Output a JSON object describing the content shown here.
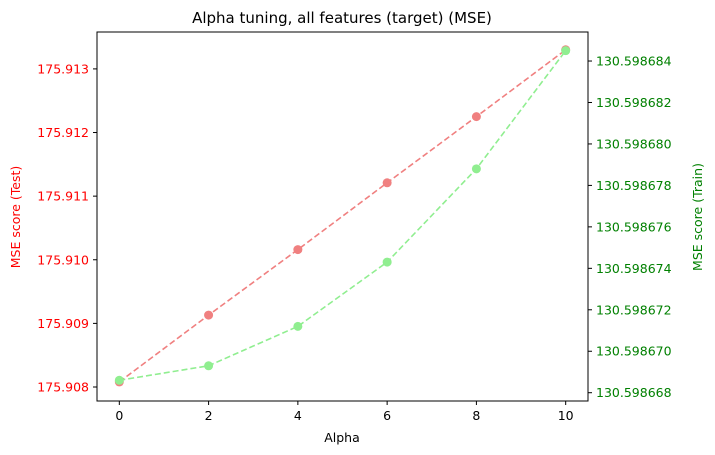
{
  "chart_data": {
    "type": "line",
    "title": "Alpha tuning, all features (target) (MSE)",
    "xlabel": "Alpha",
    "ylabel_left": "MSE score (Test)",
    "ylabel_right": "MSE score (Train)",
    "x": [
      0,
      2,
      4,
      6,
      8,
      10
    ],
    "xlim": [
      -0.5,
      10.5
    ],
    "xticks": [
      "0",
      "2",
      "4",
      "6",
      "8",
      "10"
    ],
    "left_axis": {
      "ylim": [
        175.90778,
        175.91358
      ],
      "ticks": [
        175.908,
        175.909,
        175.91,
        175.911,
        175.912,
        175.913
      ],
      "tick_labels": [
        "175.908",
        "175.909",
        "175.910",
        "175.911",
        "175.912",
        "175.913"
      ],
      "color": "#ff0000"
    },
    "right_axis": {
      "ylim": [
        130.5986676,
        130.5986854
      ],
      "ticks": [
        130.598668,
        130.59867,
        130.598672,
        130.598674,
        130.598676,
        130.598678,
        130.59868,
        130.598682,
        130.598684
      ],
      "tick_labels": [
        "130.598668",
        "130.598670",
        "130.598672",
        "130.598674",
        "130.598676",
        "130.598678",
        "130.598680",
        "130.598682",
        "130.598684"
      ],
      "color": "#008000"
    },
    "grid": false,
    "legend": "none",
    "series": [
      {
        "axis": "left",
        "color": "#f08080",
        "linestyle": "dashed",
        "marker": "circle",
        "values": [
          175.90808,
          175.90913,
          175.91016,
          175.91121,
          175.91225,
          175.9133
        ]
      },
      {
        "axis": "right",
        "color": "#90ee90",
        "linestyle": "dashed",
        "marker": "circle",
        "values": [
          130.5986686,
          130.5986693,
          130.5986712,
          130.5986743,
          130.5986788,
          130.5986845
        ]
      }
    ]
  }
}
